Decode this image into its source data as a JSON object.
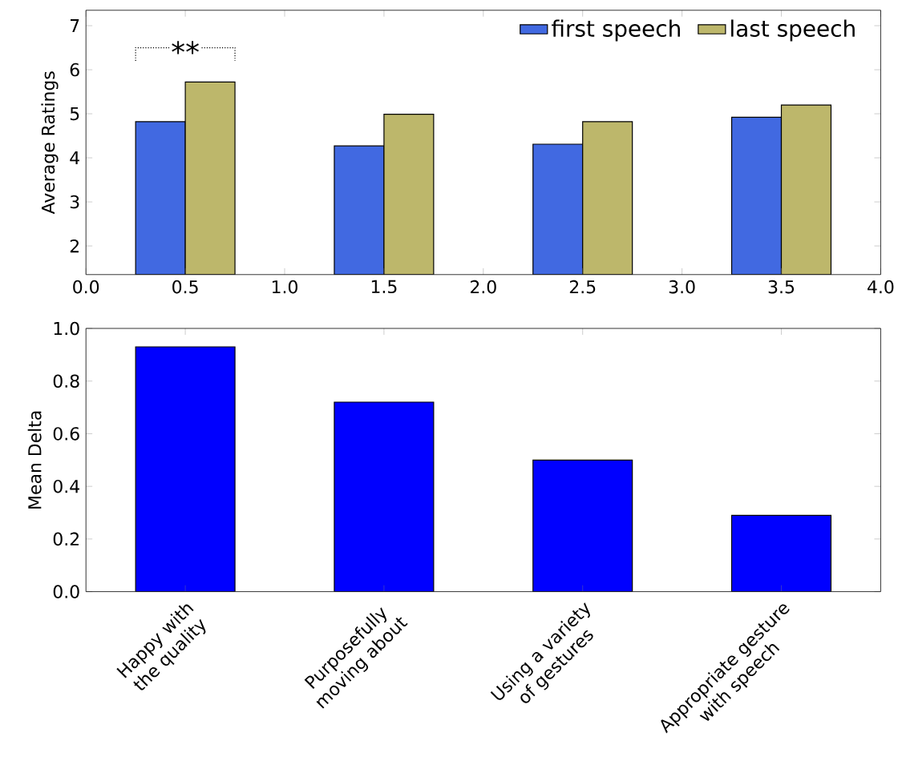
{
  "chart_data": [
    {
      "type": "bar",
      "x": [
        0.5,
        1.5,
        2.5,
        3.5
      ],
      "ylabel": "Average Ratings",
      "series": [
        {
          "name": "first speech",
          "color": "#4169e1",
          "values": [
            4.82,
            4.27,
            4.31,
            4.92
          ]
        },
        {
          "name": "last speech",
          "color": "#bdb76b",
          "values": [
            5.72,
            4.99,
            4.82,
            5.2
          ]
        }
      ],
      "xlim": [
        0,
        4
      ],
      "xticks": [
        {
          "value": 0,
          "label": "0.0"
        },
        {
          "value": 0.5,
          "label": "0.5"
        },
        {
          "value": 1,
          "label": "1.0"
        },
        {
          "value": 1.5,
          "label": "1.5"
        },
        {
          "value": 2,
          "label": "2.0"
        },
        {
          "value": 2.5,
          "label": "2.5"
        },
        {
          "value": 3,
          "label": "3.0"
        },
        {
          "value": 3.5,
          "label": "3.5"
        },
        {
          "value": 4,
          "label": "4.0"
        }
      ],
      "ylim": [
        1.35,
        7.35
      ],
      "yticks": [
        2,
        3,
        4,
        5,
        6,
        7
      ],
      "legend": "top right",
      "annotations": [
        "**"
      ]
    },
    {
      "type": "bar",
      "categories": [
        "Happy with\nthe quality",
        "Purposefully\nmoving about",
        "Using a variety\nof gestures",
        "Appropriate gesture\nwith speech"
      ],
      "values": [
        0.93,
        0.72,
        0.5,
        0.29
      ],
      "color": "#0000ff",
      "ylabel": "Mean Delta",
      "ylim": [
        0,
        1
      ],
      "yticks": [
        {
          "value": 0,
          "label": "0.0"
        },
        {
          "value": 0.2,
          "label": "0.2"
        },
        {
          "value": 0.4,
          "label": "0.4"
        },
        {
          "value": 0.6,
          "label": "0.6"
        },
        {
          "value": 0.8,
          "label": "0.8"
        },
        {
          "value": 1,
          "label": "1.0"
        }
      ]
    }
  ]
}
